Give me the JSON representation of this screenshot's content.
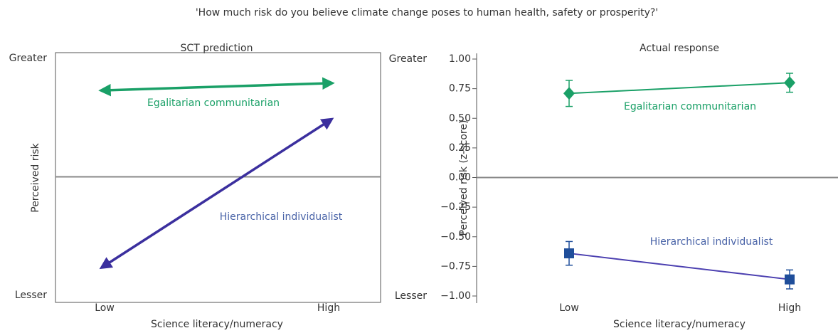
{
  "title": "'How much risk do you believe climate change poses to human health, safety or prosperity?'",
  "chart_data": [
    {
      "type": "arrow",
      "title": "SCT prediction",
      "categories": [
        "Low",
        "High"
      ],
      "xlabel": "Science literacy/numeracy",
      "ylabel": "Perceived risk",
      "ylim": [
        -1,
        1
      ],
      "yticks": [
        {
          "value": 1,
          "label": "Greater"
        },
        {
          "value": -1,
          "label": "Lesser"
        }
      ],
      "series": [
        {
          "name": "Egalitarian communitarian",
          "color": "#1aa067",
          "values": [
            0.73,
            0.79
          ]
        },
        {
          "name": "Hierarchical individualist",
          "color": "#3b2f9e",
          "label_color": "#4a64a8",
          "values": [
            -0.75,
            0.47
          ]
        }
      ]
    },
    {
      "type": "line",
      "title": "Actual response",
      "categories": [
        "Low",
        "High"
      ],
      "xlabel": "Science literacy/numeracy",
      "ylabel": "Perceived risk (z-score)",
      "ylim": [
        -1,
        1
      ],
      "yticks": [
        {
          "value": 1,
          "label": "1.00"
        },
        {
          "value": 0.75,
          "label": "0.75"
        },
        {
          "value": 0.5,
          "label": "0.50"
        },
        {
          "value": 0.25,
          "label": "0.25"
        },
        {
          "value": 0,
          "label": "0.00"
        },
        {
          "value": -0.25,
          "label": "−0.25"
        },
        {
          "value": -0.5,
          "label": "−0.50"
        },
        {
          "value": -0.75,
          "label": "−0.75"
        },
        {
          "value": -1,
          "label": "−1.00"
        }
      ],
      "axis_end_labels": [
        "Greater",
        "Lesser"
      ],
      "series": [
        {
          "name": "Egalitarian communitarian",
          "color": "#1aa067",
          "marker": "diamond",
          "values": [
            0.71,
            0.8
          ],
          "errors": [
            0.11,
            0.08
          ]
        },
        {
          "name": "Hierarchical individualist",
          "color": "#4b3fb0",
          "marker_color": "#1f4e9a",
          "label_color": "#4a64a8",
          "marker": "square",
          "values": [
            -0.64,
            -0.86
          ],
          "errors": [
            0.1,
            0.08
          ]
        }
      ]
    }
  ]
}
